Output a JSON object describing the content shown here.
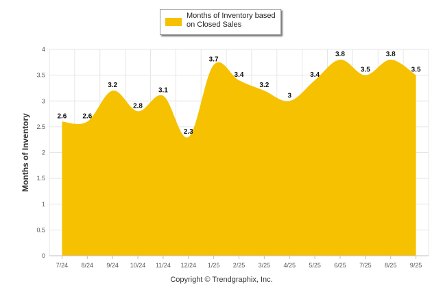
{
  "chart_data": {
    "type": "area",
    "title": "",
    "xlabel": "",
    "ylabel": "Months of Inventory",
    "ylim": [
      0,
      4
    ],
    "yticks": [
      "0",
      "0.5",
      "1",
      "1.5",
      "2",
      "2.5",
      "3",
      "3.5",
      "4"
    ],
    "ytick_values": [
      0,
      0.5,
      1,
      1.5,
      2,
      2.5,
      3,
      3.5,
      4
    ],
    "grid": true,
    "categories": [
      "7/24",
      "8/24",
      "9/24",
      "10/24",
      "11/24",
      "12/24",
      "1/25",
      "2/25",
      "3/25",
      "4/25",
      "5/25",
      "6/25",
      "7/25",
      "8/25",
      "9/25"
    ],
    "series": [
      {
        "name": "Months of Inventory based on Closed Sales",
        "values": [
          2.6,
          2.6,
          3.2,
          2.8,
          3.1,
          2.3,
          3.7,
          3.4,
          3.2,
          3,
          3.4,
          3.8,
          3.5,
          3.8,
          3.5
        ],
        "labels": [
          "2.6",
          "2.6",
          "3.2",
          "2.8",
          "3.1",
          "2.3",
          "3.7",
          "3.4",
          "3.2",
          "3",
          "3.4",
          "3.8",
          "3.5",
          "3.8",
          "3.5"
        ],
        "color": "#F6C100"
      }
    ],
    "legend": {
      "position": "top-center",
      "label": "Months of Inventory based on Closed Sales"
    }
  },
  "footer": {
    "copyright": "Copyright © Trendgraphix, Inc."
  },
  "colors": {
    "area": "#F6C100",
    "grid": "#e6e6e6",
    "axis": "#c0c0c0",
    "text": "#333333"
  }
}
